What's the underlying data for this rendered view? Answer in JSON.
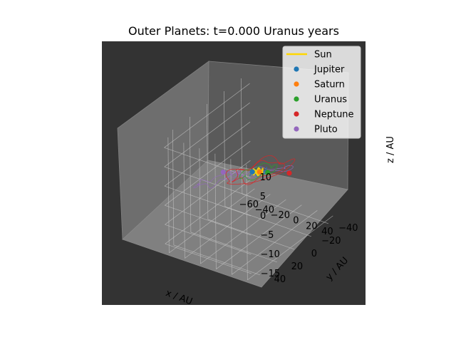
{
  "chart_data": {
    "type": "scatter",
    "projection": "3d",
    "title": "Outer Planets: t=0.000 Uranus years",
    "xlabel": "x / AU",
    "ylabel": "y / AU",
    "zlabel": "z / AU",
    "xlim": [
      -65,
      45
    ],
    "ylim": [
      -50,
      50
    ],
    "zlim": [
      -17,
      13
    ],
    "xticks": [
      -60,
      -40,
      -20,
      0,
      20,
      40
    ],
    "yticks": [
      -40,
      -20,
      0,
      20,
      40
    ],
    "zticks": [
      -15,
      -10,
      -5,
      0,
      5,
      10
    ],
    "xtick_labels": [
      "−60",
      "−40",
      "−20",
      "0",
      "20",
      "40"
    ],
    "ytick_labels": [
      "−40",
      "−20",
      "0",
      "20",
      "40"
    ],
    "ztick_labels": [
      "−15",
      "−10",
      "−5",
      "0",
      "5",
      "10"
    ],
    "grid": true,
    "axes_background": "#333333",
    "legend_position": "top-right",
    "series": [
      {
        "name": "Sun",
        "marker": "line",
        "color": "#ffd700",
        "x": [
          0
        ],
        "y": [
          0
        ],
        "z": [
          0
        ]
      },
      {
        "name": "Jupiter",
        "marker": "dot",
        "color": "#1f77b4",
        "x": [
          -4.5
        ],
        "y": [
          2.8
        ],
        "z": [
          0.1
        ]
      },
      {
        "name": "Saturn",
        "marker": "dot",
        "color": "#ff7f0e",
        "x": [
          0.5
        ],
        "y": [
          -1.0
        ],
        "z": [
          -0.2
        ]
      },
      {
        "name": "Uranus",
        "marker": "dot",
        "color": "#2ca02c",
        "x": [
          5.5
        ],
        "y": [
          -6
        ],
        "z": [
          -0.8
        ]
      },
      {
        "name": "Neptune",
        "marker": "dot",
        "color": "#d62728",
        "x": [
          22
        ],
        "y": [
          -16
        ],
        "z": [
          -1.5
        ]
      },
      {
        "name": "Pluto",
        "marker": "dot",
        "color": "#9467bd",
        "x": [
          -3
        ],
        "y": [
          38
        ],
        "z": [
          6
        ]
      }
    ]
  }
}
